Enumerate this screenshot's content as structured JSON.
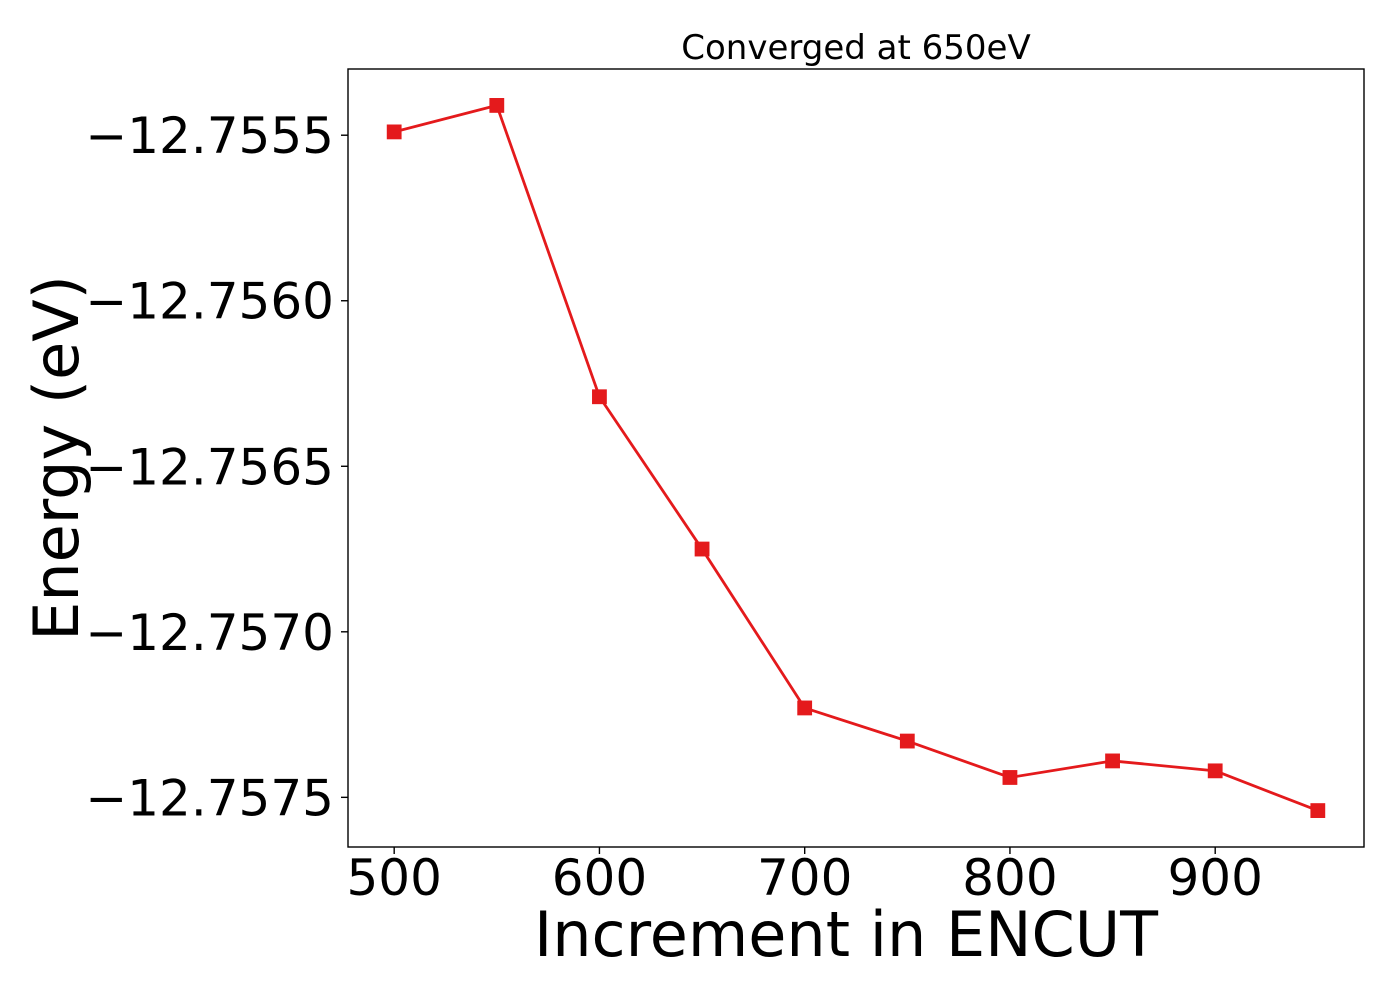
{
  "chart_data": {
    "type": "line",
    "title": "Converged at 650eV",
    "xlabel": "Increment in ENCUT",
    "ylabel": "Energy (eV)",
    "xlim": [
      477.5,
      972.5
    ],
    "ylim": [
      -12.75765,
      -12.7553
    ],
    "x_ticks": [
      {
        "value": 500,
        "label": "500"
      },
      {
        "value": 600,
        "label": "600"
      },
      {
        "value": 700,
        "label": "700"
      },
      {
        "value": 800,
        "label": "800"
      },
      {
        "value": 900,
        "label": "900"
      }
    ],
    "y_ticks": [
      {
        "value": -12.7555,
        "label": "−12.7555"
      },
      {
        "value": -12.756,
        "label": "−12.7560"
      },
      {
        "value": -12.7565,
        "label": "−12.7565"
      },
      {
        "value": -12.757,
        "label": "−12.7570"
      },
      {
        "value": -12.7575,
        "label": "−12.7575"
      }
    ],
    "grid": false,
    "legend": "none",
    "series": [
      {
        "color": "#e41a1c",
        "marker": "square",
        "x": [
          500,
          550,
          600,
          650,
          700,
          750,
          800,
          850,
          900,
          950
        ],
        "y": [
          -12.75549,
          -12.75541,
          -12.75629,
          -12.75675,
          -12.75723,
          -12.75733,
          -12.75744,
          -12.75739,
          -12.75742,
          -12.75754
        ]
      }
    ]
  }
}
